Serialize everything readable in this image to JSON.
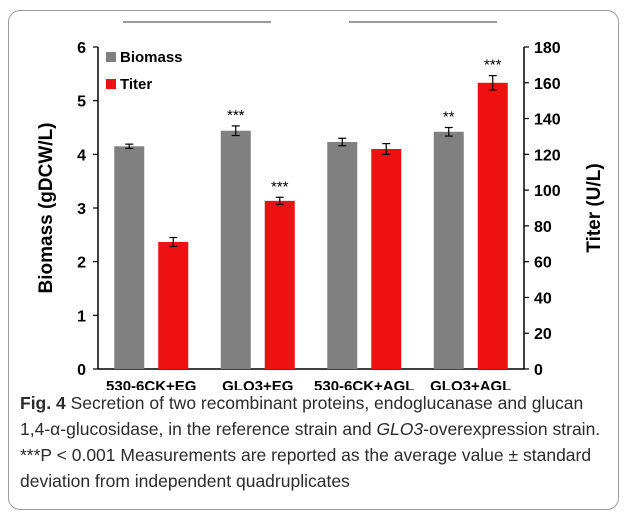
{
  "chart_data": {
    "type": "bar",
    "categories": [
      "530-6CK+EG",
      "GLO3+EG",
      "530-6CK+AGL",
      "GLO3+AGL"
    ],
    "series": [
      {
        "name": "Biomass",
        "axis": "left",
        "color": "#808080",
        "values": [
          4.15,
          4.44,
          4.23,
          4.42
        ],
        "errors": [
          0.04,
          0.09,
          0.07,
          0.08
        ],
        "annotations": [
          "",
          "***",
          "",
          "**"
        ]
      },
      {
        "name": "Titer",
        "axis": "right",
        "color": "#ee1111",
        "values": [
          71,
          94,
          123,
          160
        ],
        "errors": [
          2.5,
          2.0,
          3.0,
          4.0
        ],
        "annotations": [
          "",
          "***",
          "",
          "***"
        ]
      }
    ],
    "y_left": {
      "label": "Biomass (gDCW/L)",
      "min": 0,
      "max": 6,
      "ticks": [
        0,
        1,
        2,
        3,
        4,
        5,
        6
      ]
    },
    "y_right": {
      "label": "Titer (U/L)",
      "min": 0,
      "max": 180,
      "ticks": [
        0,
        20,
        40,
        60,
        80,
        100,
        120,
        140,
        160,
        180
      ]
    },
    "legend": {
      "placement": "top-left"
    },
    "grid": false
  },
  "caption": {
    "label": "Fig. 4",
    "part1": "  Secretion of two recombinant proteins, endoglucanase and glucan 1,4-α-glucosidase, in the reference strain and ",
    "gene": "GLO3",
    "part2": "-overexpression strain. ***P < 0.001 Measurements are reported as the average value ± standard deviation from independent quadruplicates"
  }
}
